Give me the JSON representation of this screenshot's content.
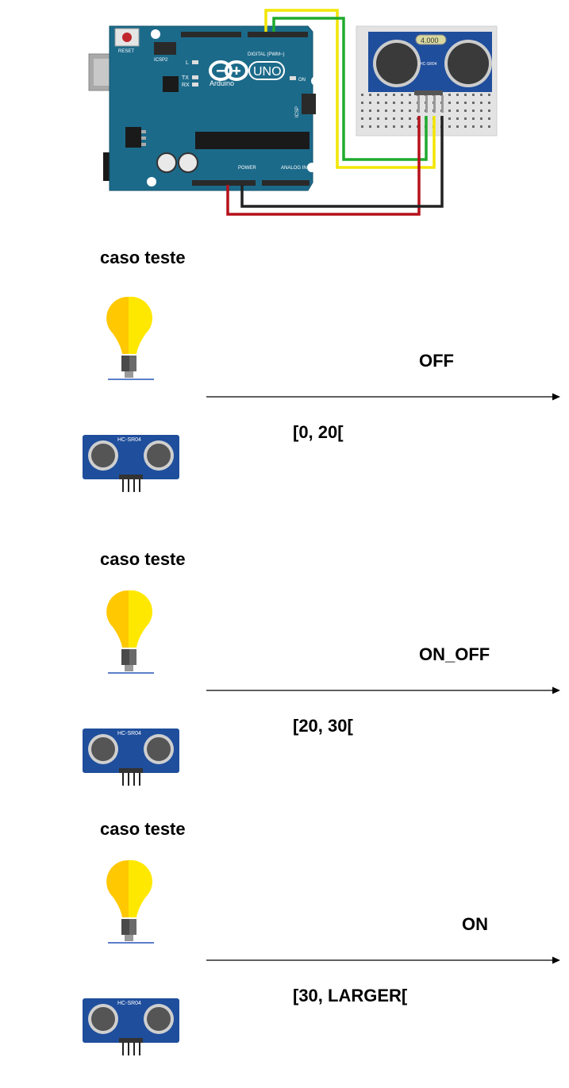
{
  "header": {
    "arduino": {
      "reset_label": "RESET",
      "icsp2_label": "ICSP2",
      "digital_label": "DIGITAL (PWM~)",
      "brand_label": "Arduino",
      "model_label": "UNO",
      "on_label": "ON",
      "tx_label": "TX",
      "rx_label": "RX",
      "l_label": "L",
      "icsp_label": "ICSP",
      "power_label": "POWER",
      "analog_label": "ANALOG IN"
    },
    "sensor": {
      "model_label": "HC-SR04",
      "display_value": "4.000"
    }
  },
  "cases": [
    {
      "title": "caso teste",
      "state_label": "OFF",
      "range_label": "[0, 20[",
      "sensor_label": "HC-SR04"
    },
    {
      "title": "caso teste",
      "state_label": "ON_OFF",
      "range_label": "[20, 30[",
      "sensor_label": "HC-SR04"
    },
    {
      "title": "caso teste",
      "state_label": "ON",
      "range_label": "[30, LARGER[",
      "sensor_label": "HC-SR04"
    }
  ],
  "colors": {
    "arduino_board": "#1c6a8a",
    "sensor_board": "#1f4e9c",
    "wire_yellow": "#f2e600",
    "wire_green": "#1faa2e",
    "wire_red": "#b5121b",
    "wire_black": "#222222",
    "bulb_yellow": "#ffe800",
    "bulb_orange": "#ffc800"
  }
}
